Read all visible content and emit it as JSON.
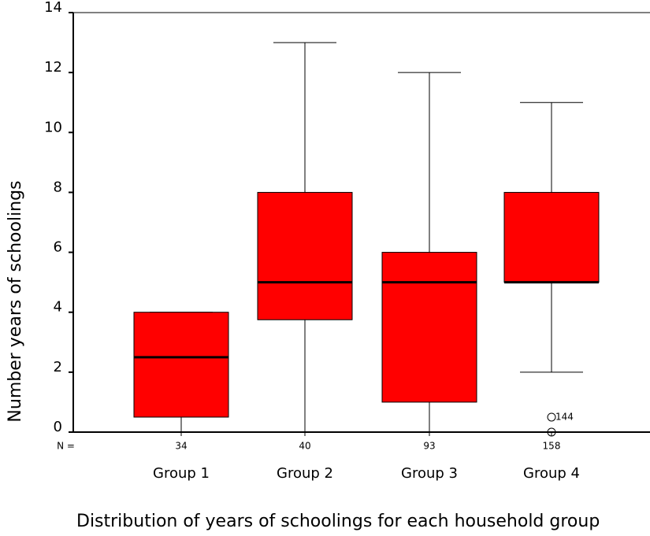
{
  "chart_data": {
    "type": "box",
    "title": "Distribution of years of schoolings for each household group",
    "y_label": "Number years of schoolings",
    "categories": [
      "Group 1",
      "Group 2",
      "Group 3",
      "Group 4"
    ],
    "n_label": "N =",
    "n_values": [
      34,
      40,
      93,
      158
    ],
    "color": "#ff0000",
    "boxes": [
      {
        "min": 0,
        "q1": 0.5,
        "median": 2.5,
        "q3": 4,
        "max": 4,
        "outliers": []
      },
      {
        "min": 0,
        "q1": 3.75,
        "median": 5,
        "q3": 8,
        "max": 13,
        "outliers": []
      },
      {
        "min": 0,
        "q1": 1,
        "median": 5,
        "q3": 6,
        "max": 12,
        "outliers": []
      },
      {
        "min": 2,
        "q1": 5,
        "median": 5,
        "q3": 8,
        "max": 11,
        "outliers": [
          {
            "value": 0.5,
            "label": "144"
          },
          {
            "value": 0
          }
        ]
      }
    ],
    "ylim": [
      0,
      14
    ],
    "yticks": [
      0,
      2,
      4,
      6,
      8,
      10,
      12,
      14
    ]
  }
}
